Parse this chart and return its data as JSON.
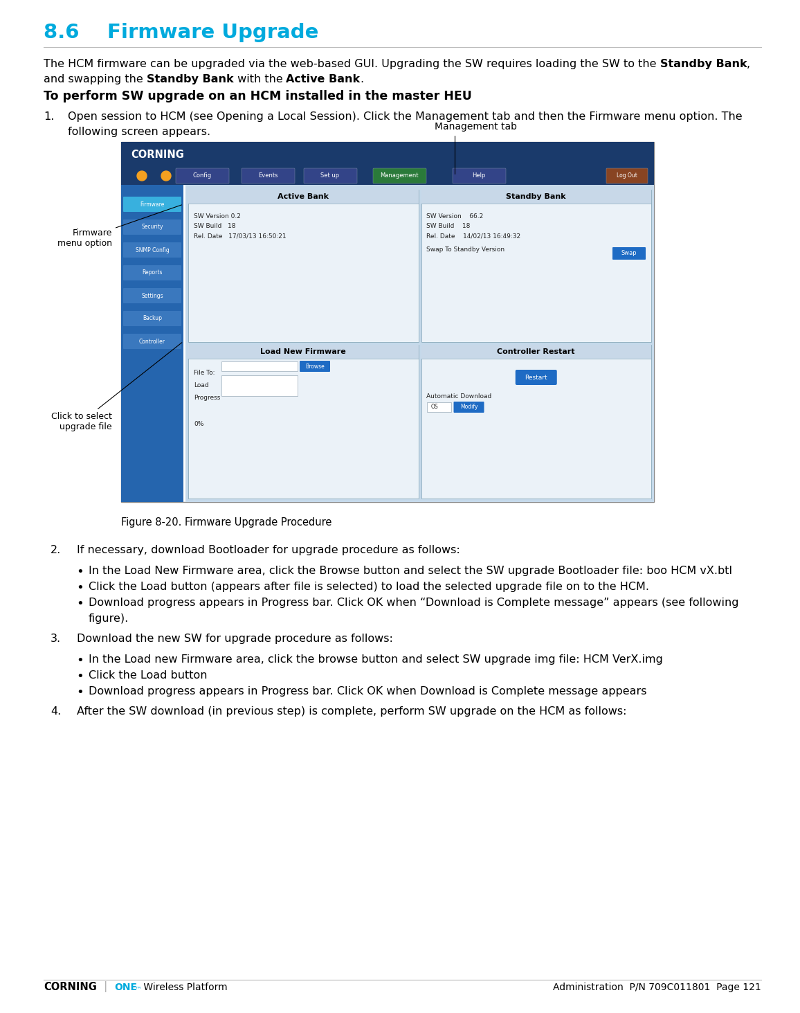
{
  "title": "8.6    Firmware Upgrade",
  "title_color": "#00AADD",
  "bg_color": "#FFFFFF",
  "section_header": "To perform SW upgrade on an HCM installed in the master HEU",
  "step1_text_line1": "Open session to HCM (see Opening a Local Session). Click the Management tab and then the Firmware menu option. The",
  "step1_text_line2": "following screen appears.",
  "figure_caption": "Figure 8-20. Firmware Upgrade Procedure",
  "step2_header": "If necessary, download Bootloader for upgrade procedure as follows:",
  "bullet1": "In the Load New Firmware area, click the Browse button and select the SW upgrade Bootloader file: boo HCM vX.btl",
  "bullet2": "Click the Load button (appears after file is selected) to load the selected upgrade file on to the HCM.",
  "bullet3a": "Download progress appears in Progress bar. Click OK when “Download is Complete message” appears (see following",
  "bullet3b": "figure).",
  "step3_header": "Download the new SW for upgrade procedure as follows:",
  "bullet4": "In the Load new Firmware area, click the browse button and select SW upgrade img file: HCM VerX.img",
  "bullet5": "Click the Load button",
  "bullet6": "Download progress appears in Progress bar. Click OK when Download is Complete message appears",
  "step4_header": "After the SW download (in previous step) is complete, perform SW upgrade on the HCM as follows:",
  "footer_right": "Administration  P/N 709C011801  Page 121",
  "nav_bar_color": "#1a3a6b",
  "header_bar_color": "#1a3a6b",
  "sidebar_color": "#2565AE",
  "content_bg": "#C5D9EA",
  "panel_bg": "#EBF2F8",
  "panel_border": "#8AAABB",
  "btn_blue": "#1E6BC4",
  "btn_green": "#2E8B57",
  "sidebar_btn_active": "#38B0DE",
  "sidebar_btn_normal": "#3A78BE"
}
